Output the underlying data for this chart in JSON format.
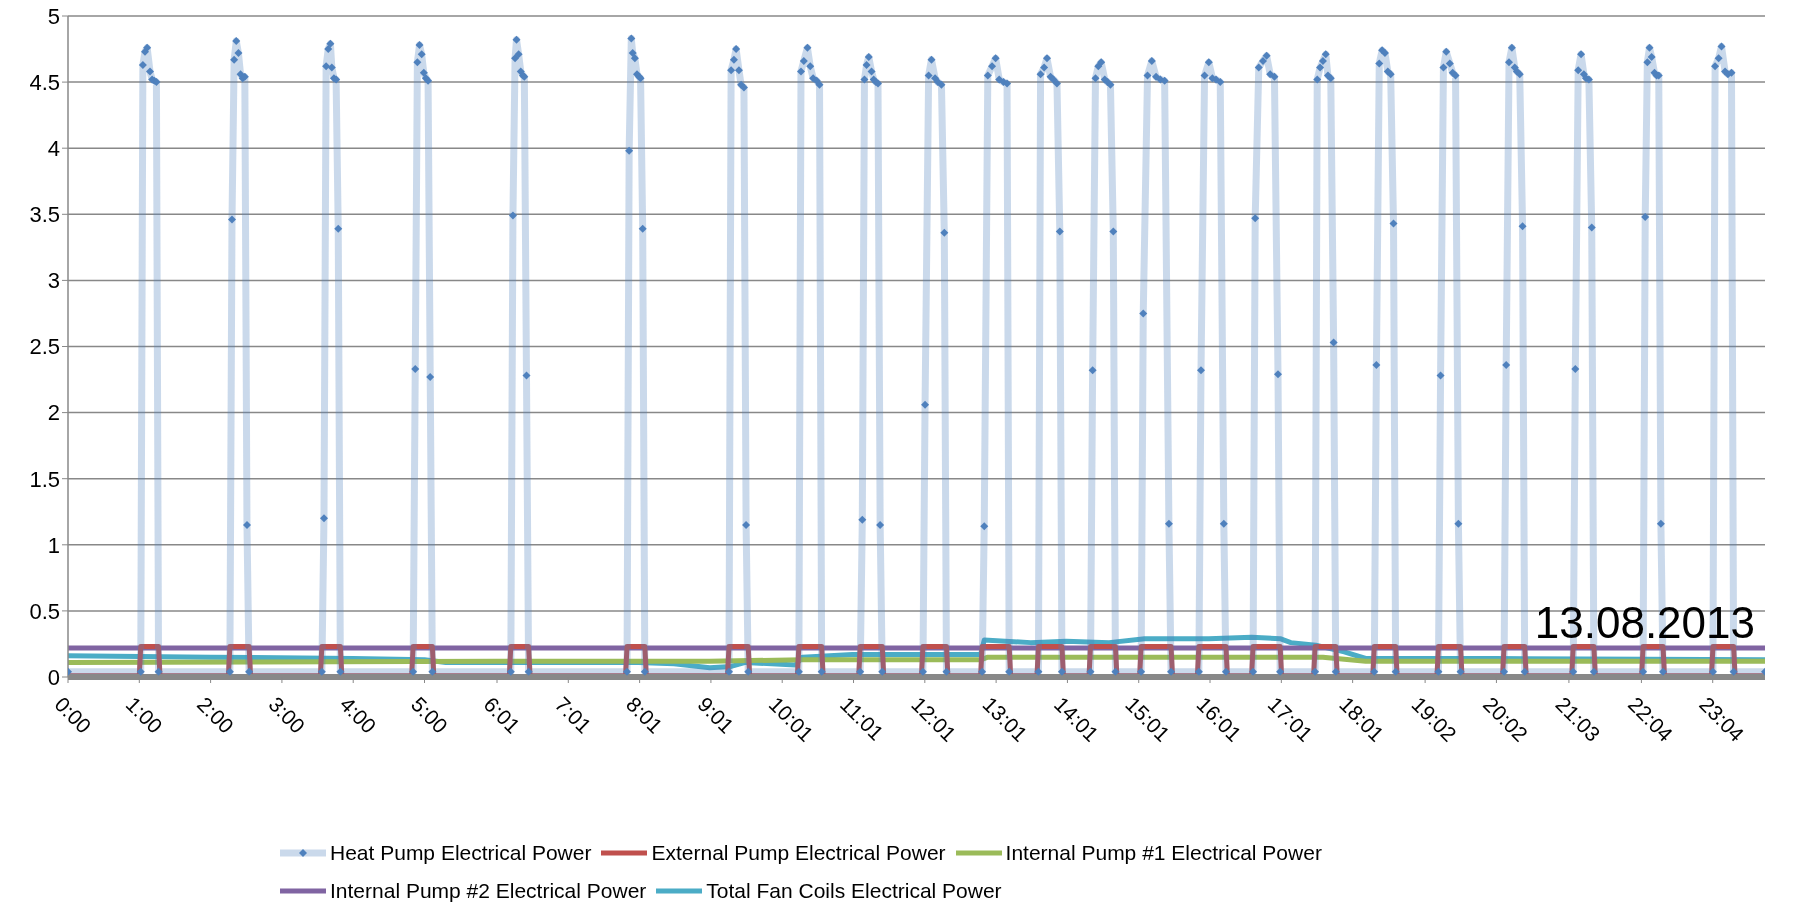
{
  "chart_data": {
    "type": "line",
    "xlim": [
      0,
      23.8
    ],
    "ylim": [
      0,
      5
    ],
    "yticks": [
      0,
      0.5,
      1,
      1.5,
      2,
      2.5,
      3,
      3.5,
      4,
      4.5,
      5
    ],
    "xticks": [
      {
        "value": 0,
        "label": "0:00"
      },
      {
        "value": 1,
        "label": "1:00"
      },
      {
        "value": 2,
        "label": "2:00"
      },
      {
        "value": 3,
        "label": "3:00"
      },
      {
        "value": 4,
        "label": "4:00"
      },
      {
        "value": 5,
        "label": "5:00"
      },
      {
        "value": 6.0167,
        "label": "6:01"
      },
      {
        "value": 7.0167,
        "label": "7:01"
      },
      {
        "value": 8.0167,
        "label": "8:01"
      },
      {
        "value": 9.0167,
        "label": "9:01"
      },
      {
        "value": 10.0167,
        "label": "10:01"
      },
      {
        "value": 11.0167,
        "label": "11:01"
      },
      {
        "value": 12.0167,
        "label": "12:01"
      },
      {
        "value": 13.0167,
        "label": "13:01"
      },
      {
        "value": 14.0167,
        "label": "14:01"
      },
      {
        "value": 15.0167,
        "label": "15:01"
      },
      {
        "value": 16.0167,
        "label": "16:01"
      },
      {
        "value": 17.0167,
        "label": "17:01"
      },
      {
        "value": 18.0167,
        "label": "18:01"
      },
      {
        "value": 19.0333,
        "label": "19:02"
      },
      {
        "value": 20.0333,
        "label": "20:02"
      },
      {
        "value": 21.05,
        "label": "21:03"
      },
      {
        "value": 22.0667,
        "label": "22:04"
      },
      {
        "value": 23.0667,
        "label": "23:04"
      }
    ],
    "grid": "y",
    "legend": "bottom",
    "annotations": [
      "13.08.2013"
    ],
    "series": [
      {
        "name": "Heat Pump Electrical Power",
        "color": "#4f81bd",
        "marker": "diamond",
        "x": [
          0,
          1.02,
          1.05,
          1.08,
          1.11,
          1.15,
          1.18,
          1.21,
          1.24,
          1.27,
          2.27,
          2.3,
          2.33,
          2.36,
          2.39,
          2.42,
          2.45,
          2.48,
          2.51,
          2.54,
          3.56,
          3.59,
          3.62,
          3.65,
          3.68,
          3.7,
          3.73,
          3.76,
          3.79,
          3.82,
          4.84,
          4.87,
          4.9,
          4.93,
          4.96,
          4.99,
          5.02,
          5.05,
          5.08,
          5.11,
          6.21,
          6.24,
          6.27,
          6.29,
          6.32,
          6.35,
          6.38,
          6.4,
          6.43,
          6.46,
          7.84,
          7.87,
          7.9,
          7.92,
          7.95,
          7.98,
          8.01,
          8.03,
          8.06,
          8.09,
          9.27,
          9.3,
          9.34,
          9.37,
          9.41,
          9.44,
          9.48,
          9.51,
          9.54,
          10.25,
          10.28,
          10.32,
          10.37,
          10.41,
          10.45,
          10.5,
          10.54,
          10.57,
          11.11,
          11.14,
          11.17,
          11.2,
          11.23,
          11.27,
          11.3,
          11.33,
          11.36,
          11.39,
          11.42,
          11.99,
          12.02,
          12.07,
          12.11,
          12.16,
          12.2,
          12.25,
          12.29,
          12.32,
          12.82,
          12.85,
          12.9,
          12.96,
          13.01,
          13.06,
          13.12,
          13.17,
          13.2,
          13.61,
          13.64,
          13.69,
          13.73,
          13.78,
          13.82,
          13.87,
          13.91,
          13.94,
          14.34,
          14.37,
          14.41,
          14.45,
          14.49,
          14.54,
          14.58,
          14.62,
          14.66,
          14.69,
          15.05,
          15.08,
          15.14,
          15.2,
          15.26,
          15.32,
          15.38,
          15.44,
          15.47,
          15.86,
          15.89,
          15.94,
          16.0,
          16.05,
          16.1,
          16.16,
          16.21,
          16.24,
          16.62,
          16.65,
          16.7,
          16.76,
          16.81,
          16.86,
          16.92,
          16.97,
          17.0,
          17.49,
          17.52,
          17.56,
          17.6,
          17.64,
          17.67,
          17.71,
          17.75,
          17.78,
          18.32,
          18.35,
          18.39,
          18.43,
          18.47,
          18.51,
          18.55,
          18.59,
          18.62,
          19.22,
          19.25,
          19.29,
          19.33,
          19.38,
          19.42,
          19.46,
          19.5,
          19.53,
          20.14,
          20.17,
          20.21,
          20.25,
          20.29,
          20.32,
          20.36,
          20.4,
          20.43,
          21.11,
          21.14,
          21.18,
          21.22,
          21.26,
          21.29,
          21.33,
          21.37,
          21.4,
          22.09,
          22.12,
          22.15,
          22.18,
          22.21,
          22.25,
          22.28,
          22.31,
          22.34,
          22.37,
          23.07,
          23.1,
          23.15,
          23.19,
          23.24,
          23.28,
          23.33,
          23.36,
          23.8
        ],
        "values": [
          0.04,
          0.04,
          4.63,
          4.73,
          4.76,
          4.58,
          4.52,
          4.51,
          4.5,
          0.04,
          0.04,
          3.46,
          4.67,
          4.81,
          4.72,
          4.56,
          4.53,
          4.54,
          1.15,
          0.04,
          0.04,
          1.2,
          4.62,
          4.75,
          4.79,
          4.61,
          4.53,
          4.52,
          3.39,
          0.04,
          0.04,
          2.33,
          4.65,
          4.78,
          4.71,
          4.57,
          4.53,
          4.51,
          2.27,
          0.04,
          0.04,
          3.49,
          4.68,
          4.82,
          4.71,
          4.58,
          4.55,
          4.54,
          2.28,
          0.04,
          0.04,
          3.98,
          4.83,
          4.72,
          4.68,
          4.56,
          4.54,
          4.53,
          3.39,
          0.04,
          0.04,
          4.59,
          4.67,
          4.75,
          4.59,
          4.48,
          4.46,
          1.15,
          0.04,
          0.04,
          4.58,
          4.66,
          4.76,
          4.62,
          4.53,
          4.51,
          4.48,
          0.04,
          0.04,
          1.19,
          4.52,
          4.63,
          4.69,
          4.58,
          4.52,
          4.5,
          4.49,
          1.15,
          0.04,
          0.04,
          2.06,
          4.55,
          4.67,
          4.53,
          4.5,
          4.48,
          3.36,
          0.04,
          0.04,
          1.14,
          4.55,
          4.62,
          4.68,
          4.52,
          4.5,
          4.49,
          0.04,
          0.04,
          4.56,
          4.61,
          4.68,
          4.54,
          4.52,
          4.49,
          3.37,
          0.04,
          0.04,
          2.32,
          4.53,
          4.62,
          4.65,
          4.52,
          4.5,
          4.48,
          3.37,
          0.04,
          0.04,
          2.75,
          4.55,
          4.66,
          4.54,
          4.52,
          4.51,
          1.16,
          0.04,
          0.04,
          2.32,
          4.55,
          4.65,
          4.53,
          4.52,
          4.5,
          1.16,
          0.04,
          0.04,
          3.47,
          4.61,
          4.66,
          4.7,
          4.56,
          4.54,
          2.29,
          0.04,
          0.04,
          4.52,
          4.61,
          4.66,
          4.71,
          4.55,
          4.53,
          2.53,
          0.04,
          0.04,
          2.36,
          4.64,
          4.74,
          4.72,
          4.58,
          4.56,
          3.43,
          0.04,
          0.04,
          2.28,
          4.61,
          4.73,
          4.64,
          4.57,
          4.55,
          1.16,
          0.04,
          0.04,
          2.36,
          4.65,
          4.76,
          4.61,
          4.58,
          4.56,
          3.41,
          0.04,
          0.04,
          2.33,
          4.59,
          4.71,
          4.56,
          4.53,
          4.52,
          3.4,
          0.04,
          0.04,
          3.48,
          4.65,
          4.76,
          4.69,
          4.57,
          4.55,
          4.55,
          1.16,
          0.04,
          0.04,
          4.62,
          4.68,
          4.77,
          4.58,
          4.56,
          4.57,
          0.04,
          0.04
        ]
      },
      {
        "name": "External Pump Electrical Power",
        "color": "#c0504d",
        "marker": "none",
        "x": [
          0,
          1.0,
          1.02,
          1.27,
          1.29,
          2.25,
          2.27,
          2.54,
          2.56,
          3.54,
          3.56,
          3.82,
          3.84,
          4.82,
          4.84,
          5.11,
          5.13,
          6.19,
          6.21,
          6.46,
          6.48,
          7.82,
          7.84,
          8.09,
          8.11,
          9.25,
          9.27,
          9.54,
          9.56,
          10.23,
          10.25,
          10.57,
          10.59,
          11.09,
          11.11,
          11.42,
          11.44,
          11.97,
          11.99,
          12.32,
          12.34,
          12.8,
          12.82,
          13.2,
          13.22,
          13.59,
          13.61,
          13.94,
          13.96,
          14.32,
          14.34,
          14.69,
          14.71,
          15.03,
          15.05,
          15.47,
          15.49,
          15.84,
          15.86,
          16.24,
          16.26,
          16.6,
          16.62,
          17.0,
          17.02,
          17.47,
          17.49,
          17.78,
          17.8,
          18.3,
          18.32,
          18.62,
          18.64,
          19.2,
          19.22,
          19.53,
          19.55,
          20.12,
          20.14,
          20.43,
          20.45,
          21.09,
          21.11,
          21.4,
          21.42,
          22.07,
          22.09,
          22.37,
          22.39,
          23.05,
          23.07,
          23.36,
          23.38,
          23.8
        ],
        "values": [
          0.01,
          0.01,
          0.23,
          0.23,
          0.01,
          0.01,
          0.23,
          0.23,
          0.01,
          0.01,
          0.23,
          0.23,
          0.01,
          0.01,
          0.23,
          0.23,
          0.01,
          0.01,
          0.23,
          0.23,
          0.01,
          0.01,
          0.23,
          0.23,
          0.01,
          0.01,
          0.23,
          0.23,
          0.01,
          0.01,
          0.23,
          0.23,
          0.01,
          0.01,
          0.23,
          0.23,
          0.01,
          0.01,
          0.23,
          0.23,
          0.01,
          0.01,
          0.23,
          0.23,
          0.01,
          0.01,
          0.23,
          0.23,
          0.01,
          0.01,
          0.23,
          0.23,
          0.01,
          0.01,
          0.23,
          0.23,
          0.01,
          0.01,
          0.23,
          0.23,
          0.01,
          0.01,
          0.23,
          0.23,
          0.01,
          0.01,
          0.23,
          0.23,
          0.01,
          0.01,
          0.23,
          0.23,
          0.01,
          0.01,
          0.23,
          0.23,
          0.01,
          0.01,
          0.23,
          0.23,
          0.01,
          0.01,
          0.23,
          0.23,
          0.01,
          0.01,
          0.23,
          0.23,
          0.01,
          0.01,
          0.23,
          0.23,
          0.01,
          0.01
        ]
      },
      {
        "name": "Internal Pump #1 Electrical Power",
        "color": "#9bbb59",
        "marker": "none",
        "x": [
          0,
          6,
          9,
          10.3,
          12.8,
          12.9,
          17.6,
          18.2,
          23.8
        ],
        "values": [
          0.11,
          0.12,
          0.12,
          0.13,
          0.13,
          0.15,
          0.15,
          0.12,
          0.12
        ]
      },
      {
        "name": "Internal Pump #2 Electrical Power",
        "color": "#8064a2",
        "marker": "none",
        "x": [
          0,
          6,
          12,
          18,
          23.8
        ],
        "values": [
          0.22,
          0.22,
          0.22,
          0.22,
          0.22
        ]
      },
      {
        "name": "Total Fan Coils Electrical Power",
        "color": "#4bacc6",
        "marker": "none",
        "x": [
          0,
          2,
          4,
          5,
          5.3,
          8,
          8.5,
          9,
          9.3,
          9.5,
          10.2,
          10.3,
          11,
          12.8,
          12.85,
          13.5,
          14,
          14.6,
          15.1,
          16,
          16.6,
          17.0,
          17.15,
          17.5,
          17.9,
          18.2,
          20,
          23.8
        ],
        "values": [
          0.16,
          0.15,
          0.14,
          0.13,
          0.11,
          0.11,
          0.1,
          0.07,
          0.08,
          0.11,
          0.09,
          0.15,
          0.17,
          0.17,
          0.28,
          0.26,
          0.27,
          0.26,
          0.29,
          0.29,
          0.3,
          0.29,
          0.26,
          0.24,
          0.19,
          0.14,
          0.14,
          0.13
        ]
      }
    ]
  }
}
